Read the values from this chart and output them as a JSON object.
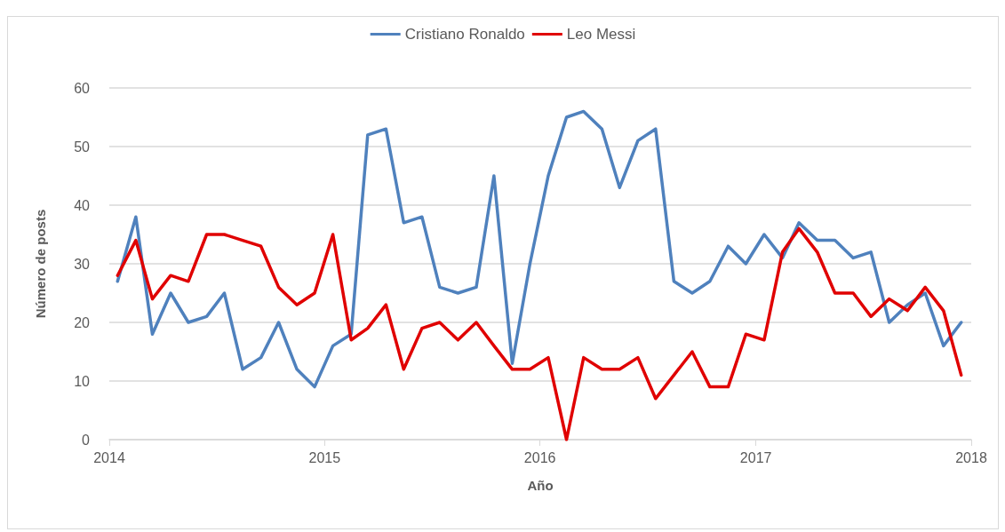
{
  "chart_data": {
    "type": "line",
    "xlabel": "Año",
    "ylabel": "Número de posts",
    "x": [
      "2014-01-15",
      "2014-02-15",
      "2014-03-15",
      "2014-04-15",
      "2014-05-15",
      "2014-06-15",
      "2014-07-15",
      "2014-08-15",
      "2014-09-15",
      "2014-10-15",
      "2014-11-15",
      "2014-12-15",
      "2015-01-15",
      "2015-02-15",
      "2015-03-15",
      "2015-04-15",
      "2015-05-15",
      "2015-06-15",
      "2015-07-15",
      "2015-08-15",
      "2015-09-15",
      "2015-10-15",
      "2015-11-15",
      "2015-12-15",
      "2016-01-15",
      "2016-02-15",
      "2016-03-15",
      "2016-04-15",
      "2016-05-15",
      "2016-06-15",
      "2016-07-15",
      "2016-08-15",
      "2016-09-15",
      "2016-10-15",
      "2016-11-15",
      "2016-12-15",
      "2017-01-15",
      "2017-02-15",
      "2017-03-15",
      "2017-04-15",
      "2017-05-15",
      "2017-06-15",
      "2017-07-15",
      "2017-08-15",
      "2017-09-15",
      "2017-10-15",
      "2017-11-15",
      "2017-12-15"
    ],
    "series": [
      {
        "name": "Cristiano Ronaldo",
        "color": "#4f81bd",
        "values": [
          27,
          38,
          18,
          25,
          20,
          21,
          25,
          12,
          14,
          20,
          12,
          9,
          16,
          18,
          52,
          53,
          37,
          38,
          26,
          25,
          26,
          45,
          13,
          30,
          45,
          55,
          56,
          53,
          43,
          51,
          53,
          27,
          25,
          27,
          33,
          30,
          35,
          31,
          37,
          34,
          34,
          31,
          32,
          20,
          23,
          25,
          16,
          20
        ]
      },
      {
        "name": "Leo Messi",
        "color": "#e00000",
        "values": [
          28,
          34,
          24,
          28,
          27,
          35,
          35,
          34,
          33,
          26,
          23,
          25,
          35,
          17,
          19,
          23,
          12,
          19,
          20,
          17,
          20,
          16,
          12,
          12,
          14,
          0,
          14,
          12,
          12,
          14,
          7,
          11,
          15,
          9,
          9,
          18,
          17,
          32,
          36,
          32,
          25,
          25,
          21,
          24,
          22,
          26,
          22,
          11
        ]
      }
    ],
    "xlim": [
      "2014",
      "2018"
    ],
    "xticks": [
      "2014",
      "2015",
      "2016",
      "2017",
      "2018"
    ],
    "ylim": [
      0,
      60
    ],
    "yticks": [
      0,
      10,
      20,
      30,
      40,
      50,
      60
    ],
    "grid": "y",
    "legend": "top",
    "marker": "none",
    "line_style": "solid"
  }
}
